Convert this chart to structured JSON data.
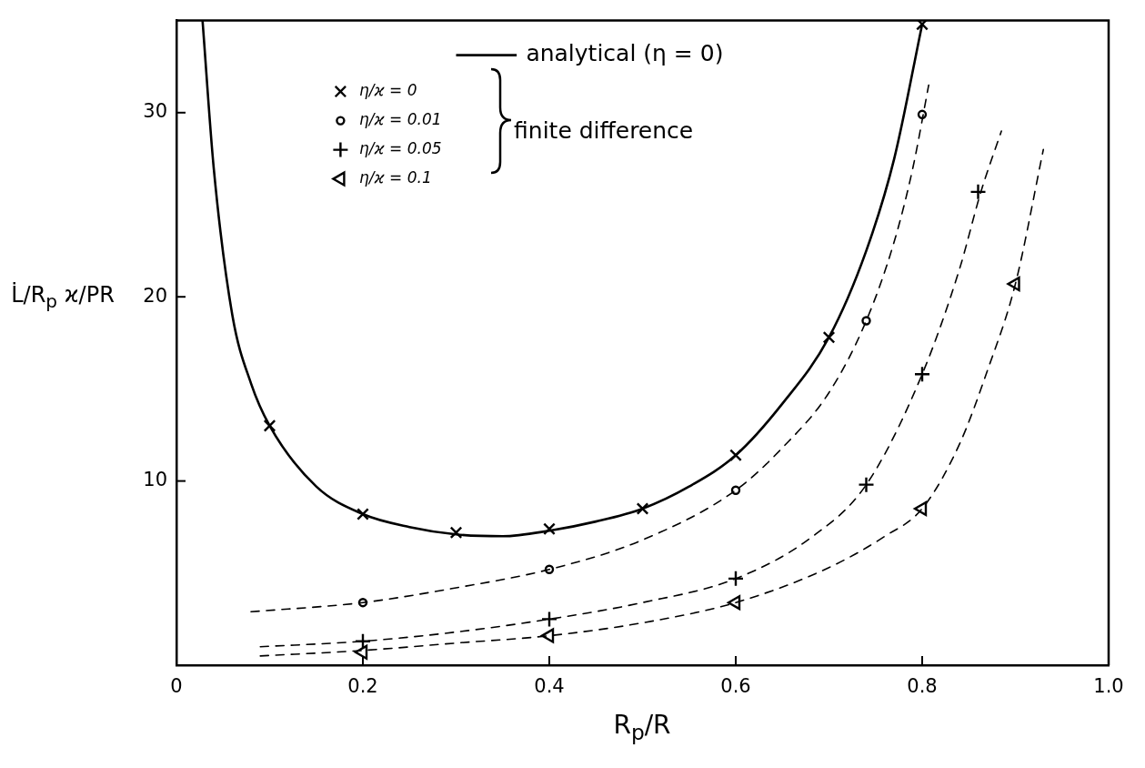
{
  "chart_data": {
    "type": "line",
    "xlabel": "R$_{p}$/R",
    "ylabel": "L̇/R$_{p}$ ϰ/PR",
    "xlim": [
      0,
      1
    ],
    "xticks": [
      {
        "value": 0,
        "label": "0"
      },
      0.2,
      0.4,
      0.6,
      0.8,
      {
        "value": 1,
        "label": "1.0"
      }
    ],
    "ylim": [
      0,
      35
    ],
    "yticks": [
      {
        "value": 0,
        "label": null
      },
      10,
      20,
      30
    ],
    "grid": false,
    "legend": "top",
    "annotations": [
      "finite difference"
    ],
    "series": [
      {
        "name": "analytical (η = 0)",
        "type": "line",
        "color": "#000000",
        "marker": "none",
        "line_style": "solid",
        "x": [
          0.028,
          0.04,
          0.06,
          0.08,
          0.1,
          0.15,
          0.2,
          0.25,
          0.3,
          0.35,
          0.4,
          0.45,
          0.5,
          0.55,
          0.6,
          0.65,
          0.7,
          0.74,
          0.77,
          0.8
        ],
        "values": [
          35,
          27,
          19,
          15.3,
          13,
          9.7,
          8.2,
          7.5,
          7.1,
          7.0,
          7.3,
          7.8,
          8.5,
          9.7,
          11.4,
          14.2,
          17.8,
          22.5,
          27.5,
          34.8
        ]
      },
      {
        "name": "η/ϰ = 0",
        "type": "scatter",
        "color": "#000000",
        "marker": "cross",
        "x": [
          0.1,
          0.2,
          0.3,
          0.4,
          0.5,
          0.6,
          0.7,
          0.8
        ],
        "values": [
          13.0,
          8.2,
          7.2,
          7.4,
          8.5,
          11.4,
          17.8,
          34.8
        ]
      },
      {
        "name": "η/ϰ = 0.01",
        "type": "scatter",
        "color": "#000000",
        "marker": "circle",
        "x": [
          0.2,
          0.4,
          0.6,
          0.74,
          0.8
        ],
        "values": [
          3.4,
          5.2,
          9.5,
          18.7,
          29.9
        ]
      },
      {
        "name": "η/ϰ = 0.05",
        "type": "scatter",
        "color": "#000000",
        "marker": "plus",
        "x": [
          0.2,
          0.4,
          0.6,
          0.74,
          0.8,
          0.86
        ],
        "values": [
          1.3,
          2.5,
          4.7,
          9.8,
          15.8,
          25.7
        ]
      },
      {
        "name": "η/ϰ = 0.1",
        "type": "scatter",
        "color": "#000000",
        "marker": "triangle",
        "x": [
          0.2,
          0.4,
          0.6,
          0.8,
          0.9
        ],
        "values": [
          0.7,
          1.6,
          3.4,
          8.5,
          20.7
        ]
      },
      {
        "type": "line",
        "color": "#000000",
        "marker": "none",
        "line_style": "dashed",
        "x": [
          0.08,
          0.2,
          0.3,
          0.4,
          0.5,
          0.6,
          0.65,
          0.7,
          0.74,
          0.77,
          0.79,
          0.807
        ],
        "values": [
          2.9,
          3.4,
          4.2,
          5.2,
          6.8,
          9.5,
          11.8,
          14.8,
          18.7,
          23,
          27,
          31.5
        ]
      },
      {
        "type": "line",
        "color": "#000000",
        "marker": "none",
        "line_style": "dashed",
        "x": [
          0.09,
          0.2,
          0.3,
          0.4,
          0.5,
          0.6,
          0.68,
          0.74,
          0.8,
          0.84,
          0.863,
          0.885
        ],
        "values": [
          1.0,
          1.3,
          1.8,
          2.5,
          3.4,
          4.7,
          6.9,
          9.8,
          15.8,
          21.5,
          25.7,
          29
        ]
      },
      {
        "type": "line",
        "color": "#000000",
        "marker": "none",
        "line_style": "dashed",
        "x": [
          0.09,
          0.2,
          0.3,
          0.4,
          0.5,
          0.6,
          0.7,
          0.76,
          0.8,
          0.84,
          0.87,
          0.9,
          0.93
        ],
        "values": [
          0.5,
          0.8,
          1.2,
          1.6,
          2.3,
          3.4,
          5.3,
          7,
          8.5,
          12,
          16,
          20.7,
          28
        ]
      }
    ]
  }
}
